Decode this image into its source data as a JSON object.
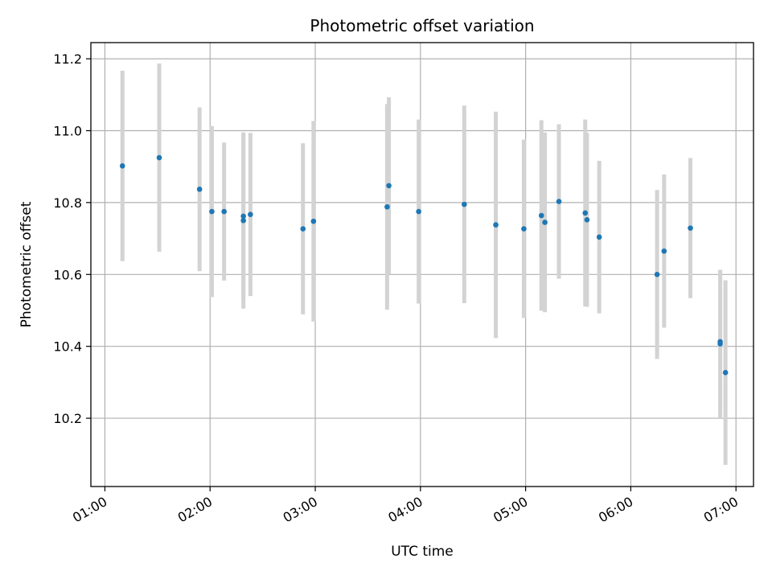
{
  "chart_data": {
    "type": "scatter",
    "title": "Photometric offset variation",
    "xlabel": "UTC time",
    "ylabel": "Photometric offset",
    "xlim": [
      "00:52",
      "07:10"
    ],
    "ylim": [
      10.01,
      11.245
    ],
    "x_ticks": [
      "01:00",
      "02:00",
      "03:00",
      "04:00",
      "05:00",
      "06:00",
      "07:00"
    ],
    "y_ticks": [
      "10.2",
      "10.4",
      "10.6",
      "10.8",
      "11.0",
      "11.2"
    ],
    "grid": true,
    "marker_color": "#1f77b4",
    "errorbar_color": "#d3d3d3",
    "points": [
      {
        "x": "01:10",
        "y": 10.902,
        "err": 0.265
      },
      {
        "x": "01:31",
        "y": 10.925,
        "err": 0.262
      },
      {
        "x": "01:54",
        "y": 10.837,
        "err": 0.228
      },
      {
        "x": "02:01",
        "y": 10.775,
        "err": 0.238
      },
      {
        "x": "02:08",
        "y": 10.775,
        "err": 0.192
      },
      {
        "x": "02:19",
        "y": 10.762,
        "err": 0.233
      },
      {
        "x": "02:19",
        "y": 10.75,
        "err": 0.245
      },
      {
        "x": "02:23",
        "y": 10.767,
        "err": 0.227
      },
      {
        "x": "02:53",
        "y": 10.727,
        "err": 0.238
      },
      {
        "x": "02:59",
        "y": 10.748,
        "err": 0.279
      },
      {
        "x": "03:41",
        "y": 10.788,
        "err": 0.286
      },
      {
        "x": "03:42",
        "y": 10.847,
        "err": 0.246
      },
      {
        "x": "03:59",
        "y": 10.775,
        "err": 0.256
      },
      {
        "x": "04:25",
        "y": 10.795,
        "err": 0.275
      },
      {
        "x": "04:43",
        "y": 10.738,
        "err": 0.315
      },
      {
        "x": "04:59",
        "y": 10.727,
        "err": 0.248
      },
      {
        "x": "05:09",
        "y": 10.764,
        "err": 0.265
      },
      {
        "x": "05:11",
        "y": 10.745,
        "err": 0.25
      },
      {
        "x": "05:19",
        "y": 10.803,
        "err": 0.215
      },
      {
        "x": "05:34",
        "y": 10.771,
        "err": 0.26
      },
      {
        "x": "05:35",
        "y": 10.752,
        "err": 0.242
      },
      {
        "x": "05:42",
        "y": 10.704,
        "err": 0.212
      },
      {
        "x": "06:15",
        "y": 10.6,
        "err": 0.235
      },
      {
        "x": "06:19",
        "y": 10.665,
        "err": 0.213
      },
      {
        "x": "06:34",
        "y": 10.729,
        "err": 0.195
      },
      {
        "x": "06:51",
        "y": 10.413,
        "err": 0.2
      },
      {
        "x": "06:51",
        "y": 10.407,
        "err": 0.205
      },
      {
        "x": "06:54",
        "y": 10.327,
        "err": 0.257
      }
    ]
  }
}
